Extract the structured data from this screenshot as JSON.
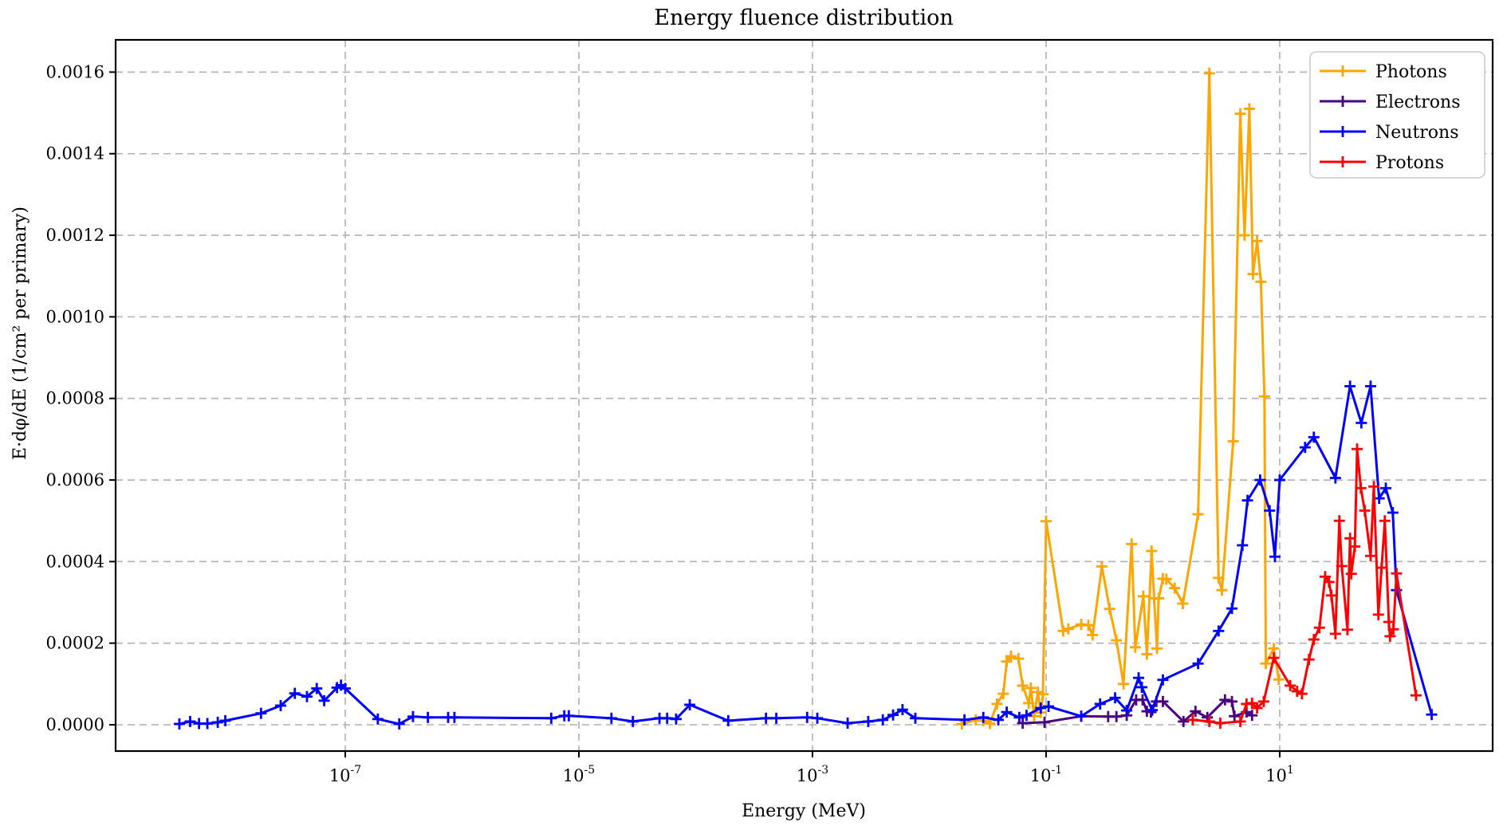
{
  "title": "Energy fluence distribution",
  "axes": {
    "xlabel": "Energy (MeV)",
    "ylabel": "E·dφ/dE  (1/cm² per primary)",
    "x_scale": "log",
    "x_tick_exponents": [
      -7,
      -5,
      -3,
      -1,
      1
    ],
    "y_ticks": [
      0.0,
      0.0002,
      0.0004,
      0.0006,
      0.0008,
      0.001,
      0.0012,
      0.0014,
      0.0016
    ],
    "x_domain_log10": [
      -8.966,
      2.823
    ],
    "y_domain": [
      -6.45e-05,
      0.001679
    ],
    "grid": "dashed",
    "grid_color": "#b0b0b0",
    "spine_color": "#000000"
  },
  "legend": {
    "position": "upper right"
  },
  "chart_data": {
    "type": "line",
    "x_scale": "log",
    "marker": "+",
    "series": [
      {
        "name": "Photons",
        "color": "#FFA500",
        "points": [
          [
            0.019,
            2e-06
          ],
          [
            0.025,
            1.2e-05
          ],
          [
            0.029,
            1e-05
          ],
          [
            0.033,
            3e-06
          ],
          [
            0.038,
            5.1e-05
          ],
          [
            0.043,
            7.6e-05
          ],
          [
            0.046,
            0.000155
          ],
          [
            0.05,
            0.000168
          ],
          [
            0.058,
            0.000162
          ],
          [
            0.063,
            9.6e-05
          ],
          [
            0.071,
            5.3e-05
          ],
          [
            0.074,
            9e-05
          ],
          [
            0.079,
            2.1e-05
          ],
          [
            0.085,
            8e-05
          ],
          [
            0.09,
            3e-05
          ],
          [
            0.094,
            7.5e-05
          ],
          [
            0.1,
            0.000499
          ],
          [
            0.14,
            0.00023
          ],
          [
            0.155,
            0.000235
          ],
          [
            0.2,
            0.000246
          ],
          [
            0.23,
            0.000244
          ],
          [
            0.25,
            0.00022
          ],
          [
            0.3,
            0.000388
          ],
          [
            0.35,
            0.000284
          ],
          [
            0.4,
            0.000207
          ],
          [
            0.46,
            0.0001
          ],
          [
            0.54,
            0.000443
          ],
          [
            0.58,
            0.00019
          ],
          [
            0.68,
            0.000315
          ],
          [
            0.73,
            0.000173
          ],
          [
            0.8,
            0.000426
          ],
          [
            0.84,
            0.00031
          ],
          [
            0.89,
            0.000187
          ],
          [
            0.92,
            0.00031
          ],
          [
            1.0,
            0.000358
          ],
          [
            1.07,
            0.000357
          ],
          [
            1.26,
            0.000335
          ],
          [
            1.48,
            0.000297
          ],
          [
            2.0,
            0.000516
          ],
          [
            2.5,
            0.001597
          ],
          [
            3.0,
            0.00036
          ],
          [
            3.2,
            0.00033
          ],
          [
            4.0,
            0.000695
          ],
          [
            4.6,
            0.001498
          ],
          [
            5.0,
            0.0012
          ],
          [
            5.5,
            0.00151
          ],
          [
            5.9,
            0.001105
          ],
          [
            6.4,
            0.001186
          ],
          [
            6.9,
            0.001086
          ],
          [
            7.4,
            0.000805
          ],
          [
            7.6,
            0.00015
          ],
          [
            8.9,
            0.000187
          ],
          [
            9.8,
            0.000111
          ]
        ]
      },
      {
        "name": "Electrons",
        "color": "#4B0082",
        "points": [
          [
            0.063,
            4e-06
          ],
          [
            0.097,
            6e-06
          ],
          [
            0.2,
            2.1e-05
          ],
          [
            0.34,
            2e-05
          ],
          [
            0.4,
            2e-05
          ],
          [
            0.49,
            2.3e-05
          ],
          [
            0.59,
            6.1e-05
          ],
          [
            0.67,
            6.1e-05
          ],
          [
            0.73,
            3.3e-05
          ],
          [
            0.79,
            3.1e-05
          ],
          [
            0.88,
            5.7e-05
          ],
          [
            1.0,
            5.7e-05
          ],
          [
            1.5,
            8e-06
          ],
          [
            1.9,
            3.3e-05
          ],
          [
            2.4,
            1.8e-05
          ],
          [
            3.4,
            6.1e-05
          ],
          [
            3.9,
            5.7e-05
          ],
          [
            4.1,
            2.1e-05
          ],
          [
            5.2,
            3.1e-05
          ],
          [
            5.8,
            2.3e-05
          ]
        ]
      },
      {
        "name": "Neutrons",
        "color": "#0000FF",
        "points": [
          [
            3.8e-09,
            2e-06
          ],
          [
            4.7e-09,
            8e-06
          ],
          [
            5.6e-09,
            3e-06
          ],
          [
            6.6e-09,
            3e-06
          ],
          [
            8.1e-09,
            6e-06
          ],
          [
            9.4e-09,
            1e-05
          ],
          [
            1.9e-08,
            2.8e-05
          ],
          [
            2.8e-08,
            4.7e-05
          ],
          [
            3.7e-08,
            7.7e-05
          ],
          [
            4.7e-08,
            6.9e-05
          ],
          [
            5.7e-08,
            8.9e-05
          ],
          [
            6.6e-08,
            5.9e-05
          ],
          [
            8.5e-08,
            9.1e-05
          ],
          [
            9.2e-08,
            9.7e-05
          ],
          [
            1e-07,
            8.9e-05
          ],
          [
            1.9e-07,
            1.4e-05
          ],
          [
            2.9e-07,
            2e-06
          ],
          [
            3.8e-07,
            2e-05
          ],
          [
            5.1e-07,
            1.8e-05
          ],
          [
            7.6e-07,
            1.8e-05
          ],
          [
            8.6e-07,
            1.8e-05
          ],
          [
            5.8e-06,
            1.6e-05
          ],
          [
            7.5e-06,
            2.2e-05
          ],
          [
            8.2e-06,
            2.2e-05
          ],
          [
            1.9e-05,
            1.6e-05
          ],
          [
            2.9e-05,
            8e-06
          ],
          [
            4.9e-05,
            1.6e-05
          ],
          [
            5.7e-05,
            1.6e-05
          ],
          [
            6.8e-05,
            1.4e-05
          ],
          [
            8.9e-05,
            4.9e-05
          ],
          [
            0.00019,
            1e-05
          ],
          [
            0.0004,
            1.6e-05
          ],
          [
            0.00049,
            1.6e-05
          ],
          [
            0.0009,
            1.8e-05
          ],
          [
            0.0011,
            1.6e-05
          ],
          [
            0.002,
            4e-06
          ],
          [
            0.003,
            8e-06
          ],
          [
            0.004,
            1.2e-05
          ],
          [
            0.0049,
            2.4e-05
          ],
          [
            0.0059,
            3.7e-05
          ],
          [
            0.0076,
            1.6e-05
          ],
          [
            0.02,
            1.2e-05
          ],
          [
            0.029,
            1.8e-05
          ],
          [
            0.039,
            1.2e-05
          ],
          [
            0.046,
            3.1e-05
          ],
          [
            0.059,
            1.8e-05
          ],
          [
            0.068,
            2.3e-05
          ],
          [
            0.09,
            4.1e-05
          ],
          [
            0.105,
            4.5e-05
          ],
          [
            0.2,
            2.1e-05
          ],
          [
            0.29,
            5.1e-05
          ],
          [
            0.39,
            6.6e-05
          ],
          [
            0.49,
            3.5e-05
          ],
          [
            0.62,
            0.000115
          ],
          [
            0.66,
            9.2e-05
          ],
          [
            0.81,
            3.6e-05
          ],
          [
            1.0,
            0.00011
          ],
          [
            2.0,
            0.00015
          ],
          [
            3.0,
            0.00023
          ],
          [
            3.9,
            0.000285
          ],
          [
            4.8,
            0.00044
          ],
          [
            5.3,
            0.00055
          ],
          [
            6.8,
            0.0006
          ],
          [
            8.2,
            0.000525
          ],
          [
            9.1,
            0.000412
          ],
          [
            10,
            0.0006
          ],
          [
            16.5,
            0.00068
          ],
          [
            19.6,
            0.000705
          ],
          [
            30,
            0.000605
          ],
          [
            40,
            0.00083
          ],
          [
            50,
            0.00074
          ],
          [
            60,
            0.00083
          ],
          [
            71,
            0.000555
          ],
          [
            81,
            0.00058
          ],
          [
            93,
            0.00052
          ],
          [
            100,
            0.00033
          ],
          [
            200,
            2.5e-05
          ]
        ]
      },
      {
        "name": "Protons",
        "color": "#FF0000",
        "points": [
          [
            1.8,
            1.2e-05
          ],
          [
            2.5,
            8e-06
          ],
          [
            3.1,
            4e-06
          ],
          [
            4.6,
            8e-06
          ],
          [
            5.2,
            5.1e-05
          ],
          [
            5.8,
            5.3e-05
          ],
          [
            6.4,
            4.1e-05
          ],
          [
            7.3,
            5.7e-05
          ],
          [
            8.9,
            0.000164
          ],
          [
            12.3,
            9.6e-05
          ],
          [
            14.1,
            8.2e-05
          ],
          [
            15.5,
            7.6e-05
          ],
          [
            17.8,
            0.00016
          ],
          [
            19.6,
            0.000209
          ],
          [
            21.9,
            0.000238
          ],
          [
            24.5,
            0.000363
          ],
          [
            26.4,
            0.00035
          ],
          [
            27.7,
            0.000317
          ],
          [
            30,
            0.000223
          ],
          [
            32.4,
            0.0005
          ],
          [
            34,
            0.000389
          ],
          [
            38,
            0.000233
          ],
          [
            40,
            0.000457
          ],
          [
            41,
            0.00037
          ],
          [
            44,
            0.000437
          ],
          [
            46,
            0.000676
          ],
          [
            49.5,
            0.00058
          ],
          [
            53.5,
            0.000525
          ],
          [
            60,
            0.000414
          ],
          [
            64,
            0.000584
          ],
          [
            70,
            0.00027
          ],
          [
            74.5,
            0.000385
          ],
          [
            79.4,
            0.0005
          ],
          [
            86,
            0.000252
          ],
          [
            88,
            0.000217
          ],
          [
            94,
            0.000234
          ],
          [
            100,
            0.000371
          ],
          [
            147,
            7.2e-05
          ]
        ]
      }
    ]
  }
}
